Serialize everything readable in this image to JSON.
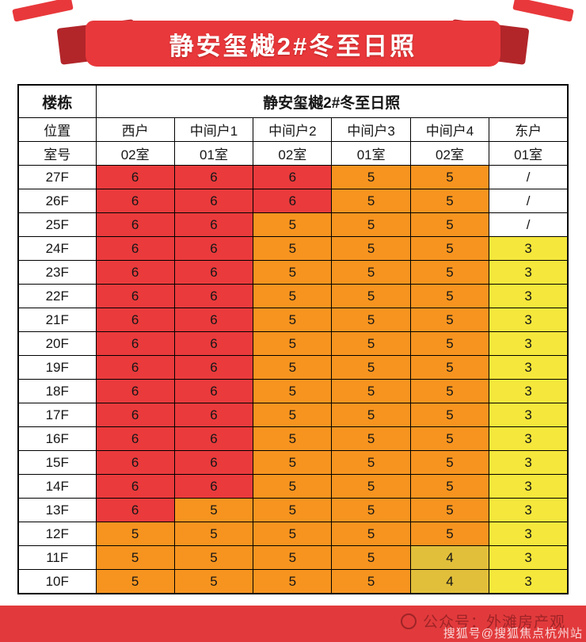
{
  "banner": {
    "title": "静安玺樾2#冬至日照"
  },
  "chart_data": {
    "type": "table",
    "title": "静安玺樾2#冬至日照",
    "corner_label": "楼栋",
    "position_label": "位置",
    "room_label": "室号",
    "positions": [
      "西户",
      "中间户1",
      "中间户2",
      "中间户3",
      "中间户4",
      "东户"
    ],
    "rooms": [
      "02室",
      "01室",
      "02室",
      "01室",
      "02室",
      "01室"
    ],
    "rows": [
      {
        "floor": "27F",
        "values": [
          "6",
          "6",
          "6",
          "5",
          "5",
          "/"
        ],
        "colors": [
          "red",
          "red",
          "red",
          "orange",
          "orange",
          "white"
        ]
      },
      {
        "floor": "26F",
        "values": [
          "6",
          "6",
          "6",
          "5",
          "5",
          "/"
        ],
        "colors": [
          "red",
          "red",
          "red",
          "orange",
          "orange",
          "white"
        ]
      },
      {
        "floor": "25F",
        "values": [
          "6",
          "6",
          "5",
          "5",
          "5",
          "/"
        ],
        "colors": [
          "red",
          "red",
          "orange",
          "orange",
          "orange",
          "white"
        ]
      },
      {
        "floor": "24F",
        "values": [
          "6",
          "6",
          "5",
          "5",
          "5",
          "3"
        ],
        "colors": [
          "red",
          "red",
          "orange",
          "orange",
          "orange",
          "yellow"
        ]
      },
      {
        "floor": "23F",
        "values": [
          "6",
          "6",
          "5",
          "5",
          "5",
          "3"
        ],
        "colors": [
          "red",
          "red",
          "orange",
          "orange",
          "orange",
          "yellow"
        ]
      },
      {
        "floor": "22F",
        "values": [
          "6",
          "6",
          "5",
          "5",
          "5",
          "3"
        ],
        "colors": [
          "red",
          "red",
          "orange",
          "orange",
          "orange",
          "yellow"
        ]
      },
      {
        "floor": "21F",
        "values": [
          "6",
          "6",
          "5",
          "5",
          "5",
          "3"
        ],
        "colors": [
          "red",
          "red",
          "orange",
          "orange",
          "orange",
          "yellow"
        ]
      },
      {
        "floor": "20F",
        "values": [
          "6",
          "6",
          "5",
          "5",
          "5",
          "3"
        ],
        "colors": [
          "red",
          "red",
          "orange",
          "orange",
          "orange",
          "yellow"
        ]
      },
      {
        "floor": "19F",
        "values": [
          "6",
          "6",
          "5",
          "5",
          "5",
          "3"
        ],
        "colors": [
          "red",
          "red",
          "orange",
          "orange",
          "orange",
          "yellow"
        ]
      },
      {
        "floor": "18F",
        "values": [
          "6",
          "6",
          "5",
          "5",
          "5",
          "3"
        ],
        "colors": [
          "red",
          "red",
          "orange",
          "orange",
          "orange",
          "yellow"
        ]
      },
      {
        "floor": "17F",
        "values": [
          "6",
          "6",
          "5",
          "5",
          "5",
          "3"
        ],
        "colors": [
          "red",
          "red",
          "orange",
          "orange",
          "orange",
          "yellow"
        ]
      },
      {
        "floor": "16F",
        "values": [
          "6",
          "6",
          "5",
          "5",
          "5",
          "3"
        ],
        "colors": [
          "red",
          "red",
          "orange",
          "orange",
          "orange",
          "yellow"
        ]
      },
      {
        "floor": "15F",
        "values": [
          "6",
          "6",
          "5",
          "5",
          "5",
          "3"
        ],
        "colors": [
          "red",
          "red",
          "orange",
          "orange",
          "orange",
          "yellow"
        ]
      },
      {
        "floor": "14F",
        "values": [
          "6",
          "6",
          "5",
          "5",
          "5",
          "3"
        ],
        "colors": [
          "red",
          "red",
          "orange",
          "orange",
          "orange",
          "yellow"
        ]
      },
      {
        "floor": "13F",
        "values": [
          "6",
          "5",
          "5",
          "5",
          "5",
          "3"
        ],
        "colors": [
          "red",
          "orange",
          "orange",
          "orange",
          "orange",
          "yellow"
        ]
      },
      {
        "floor": "12F",
        "values": [
          "5",
          "5",
          "5",
          "5",
          "5",
          "3"
        ],
        "colors": [
          "orange",
          "orange",
          "orange",
          "orange",
          "orange",
          "yellow"
        ]
      },
      {
        "floor": "11F",
        "values": [
          "5",
          "5",
          "5",
          "5",
          "4",
          "3"
        ],
        "colors": [
          "orange",
          "orange",
          "orange",
          "orange",
          "gold",
          "yellow"
        ]
      },
      {
        "floor": "10F",
        "values": [
          "5",
          "5",
          "5",
          "5",
          "4",
          "3"
        ],
        "colors": [
          "orange",
          "orange",
          "orange",
          "orange",
          "gold",
          "yellow"
        ]
      }
    ]
  },
  "colors": {
    "red": "#ea3a3c",
    "orange": "#f7941f",
    "yellow": "#f5e73b",
    "gold": "#e2bf3a",
    "white": "#ffffff",
    "banner_red": "#e8383b",
    "banner_fold_dark": "#b2262a",
    "footer_red": "#e23a3c"
  },
  "footer": {
    "account": "公众号：外滩房产观",
    "watermark": "搜狐号@搜狐焦点杭州站"
  }
}
